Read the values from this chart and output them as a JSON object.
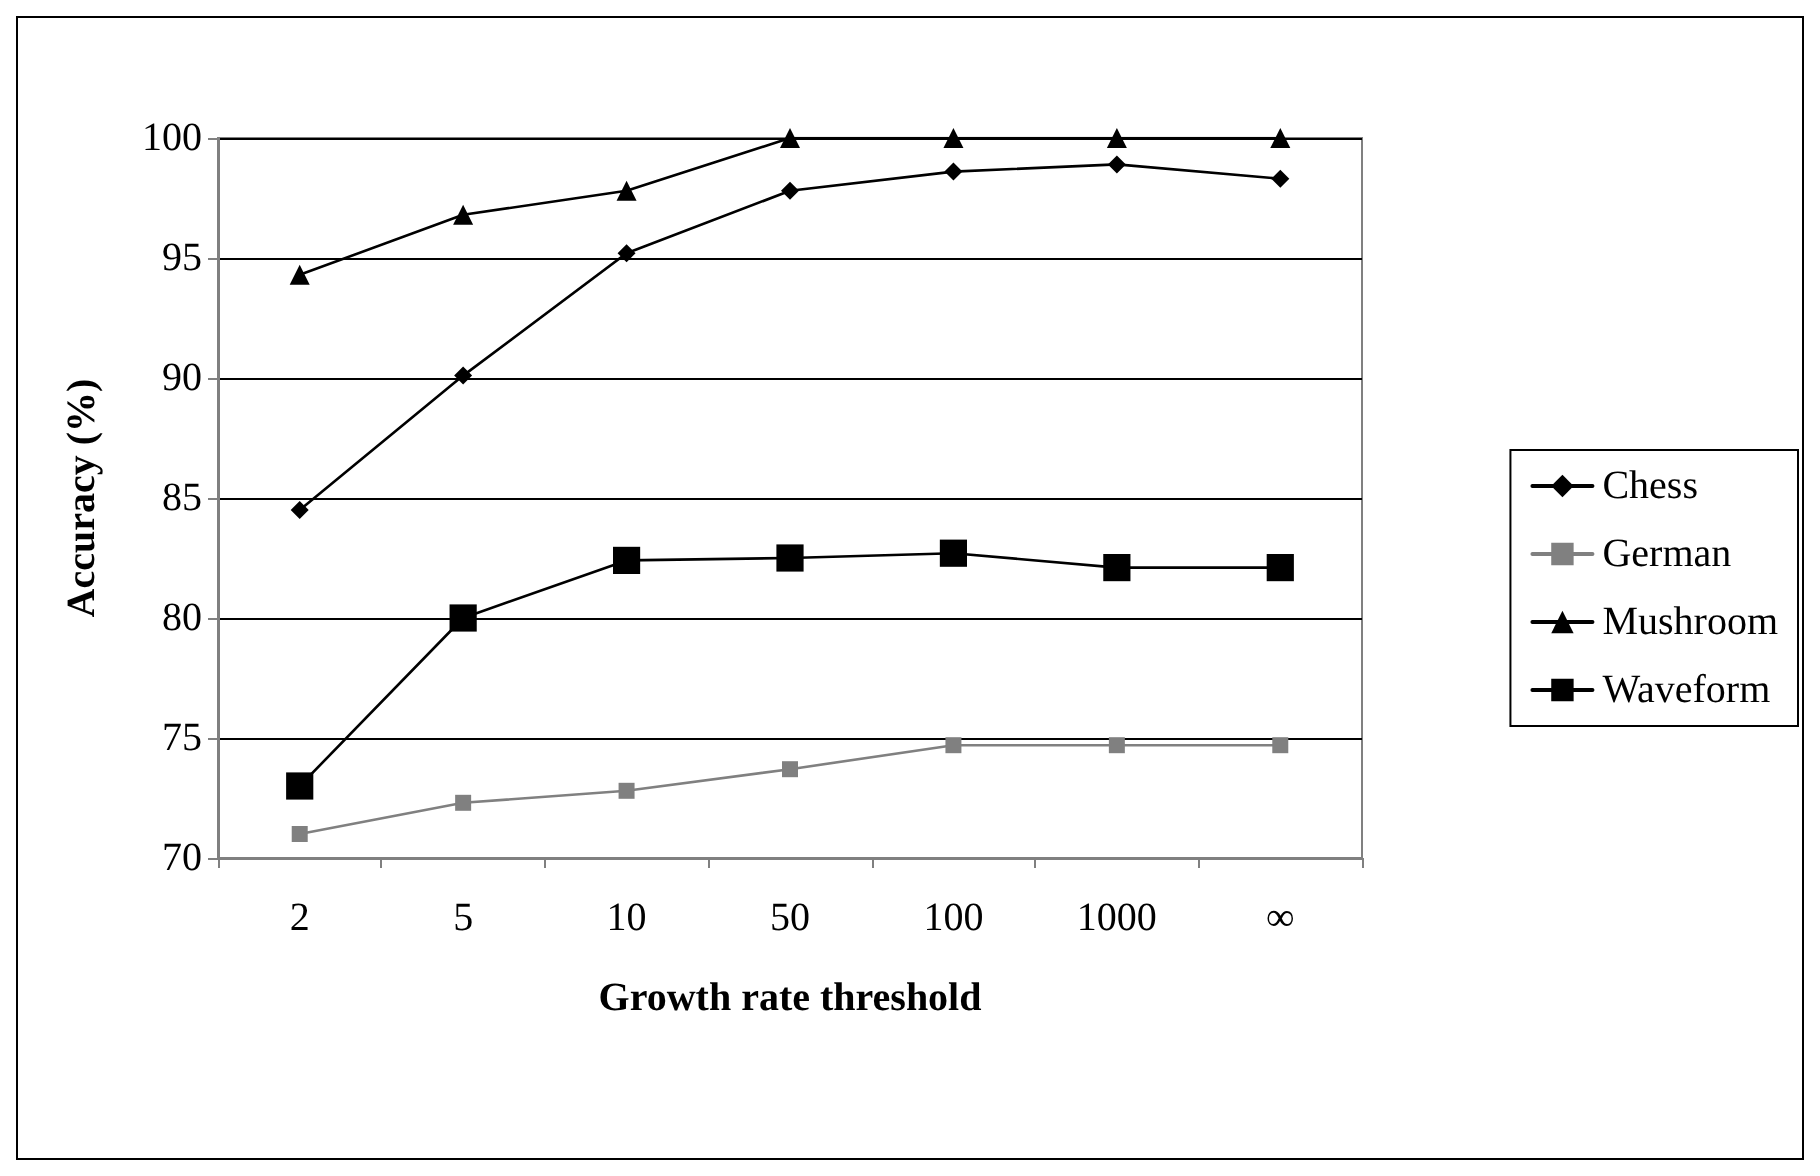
{
  "chart_data": {
    "type": "line",
    "xlabel": "Growth rate threshold",
    "ylabel": "Accuracy (%)",
    "categories": [
      "2",
      "5",
      "10",
      "50",
      "100",
      "1000",
      "∞"
    ],
    "series": [
      {
        "name": "Chess",
        "color": "#000000",
        "marker": "diamond",
        "values": [
          84.5,
          90.1,
          95.2,
          97.8,
          98.6,
          98.9,
          98.3
        ]
      },
      {
        "name": "German",
        "color": "#808080",
        "marker": "square",
        "values": [
          71,
          72.3,
          72.8,
          73.7,
          74.7,
          74.7,
          74.7
        ]
      },
      {
        "name": "Mushroom",
        "color": "#000000",
        "marker": "triangle",
        "values": [
          94.3,
          96.8,
          97.8,
          100,
          100,
          100,
          100
        ]
      },
      {
        "name": "Waveform",
        "color": "#000000",
        "marker": "square",
        "values": [
          73,
          80,
          82.4,
          82.5,
          82.7,
          82.1,
          82.1
        ]
      }
    ],
    "ylim": [
      70,
      100
    ],
    "yticks": [
      70,
      75,
      80,
      85,
      90,
      95,
      100
    ],
    "grid": "y",
    "legend": "right",
    "line_style": "solid"
  }
}
